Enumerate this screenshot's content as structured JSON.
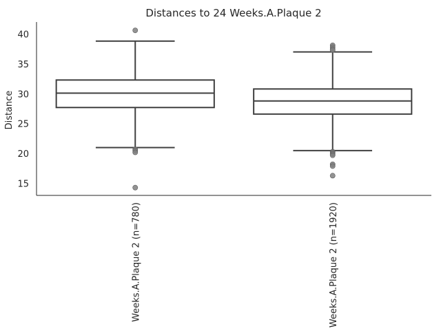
{
  "chart_data": {
    "type": "box",
    "title": "Distances to 24 Weeks.A.Plaque 2",
    "xlabel": "",
    "ylabel": "Distance",
    "ylim": [
      13.0,
      42.0
    ],
    "yticks": [
      15,
      20,
      25,
      30,
      35,
      40
    ],
    "grid": false,
    "legend": "none",
    "categories": [
      "Weeks.A.Plaque 2 (n=780)",
      "Weeks.A.Plaque 2 (n=1920)"
    ],
    "boxes": [
      {
        "category": "Weeks.A.Plaque 2 (n=780)",
        "whisker_low": 21.0,
        "q1": 27.7,
        "median": 30.1,
        "q3": 32.3,
        "whisker_high": 38.8,
        "outliers": [
          40.6,
          20.7,
          20.5,
          20.2,
          14.3
        ]
      },
      {
        "category": "Weeks.A.Plaque 2 (n=1920)",
        "whisker_low": 20.5,
        "q1": 26.6,
        "median": 28.8,
        "q3": 30.8,
        "whisker_high": 37.0,
        "outliers": [
          38.1,
          37.8,
          37.5,
          37.3,
          20.3,
          20.1,
          19.9,
          19.7,
          18.2,
          17.9,
          16.3
        ]
      }
    ],
    "colors": {
      "box_line": "#3f3f3f",
      "outlier_fill": "#808080",
      "axis": "#262626",
      "text": "#262626"
    }
  }
}
